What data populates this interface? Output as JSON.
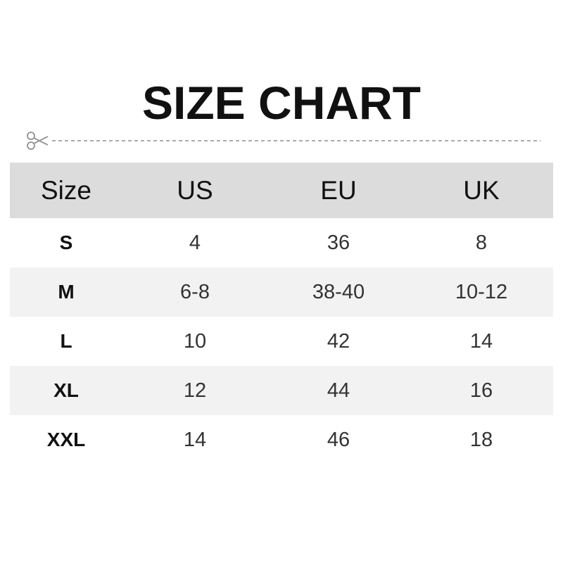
{
  "title": "SIZE CHART",
  "icons": {
    "cut": "scissors-icon"
  },
  "table": {
    "headers": [
      "Size",
      "US",
      "EU",
      "UK"
    ],
    "rows": [
      [
        "S",
        "4",
        "36",
        "8"
      ],
      [
        "M",
        "6-8",
        "38-40",
        "10-12"
      ],
      [
        "L",
        "10",
        "42",
        "14"
      ],
      [
        "XL",
        "12",
        "44",
        "16"
      ],
      [
        "XXL",
        "14",
        "46",
        "18"
      ]
    ]
  },
  "colors": {
    "header_bg": "#dcdcdc",
    "alt_row_bg": "#f2f2f2",
    "text": "#111111"
  }
}
